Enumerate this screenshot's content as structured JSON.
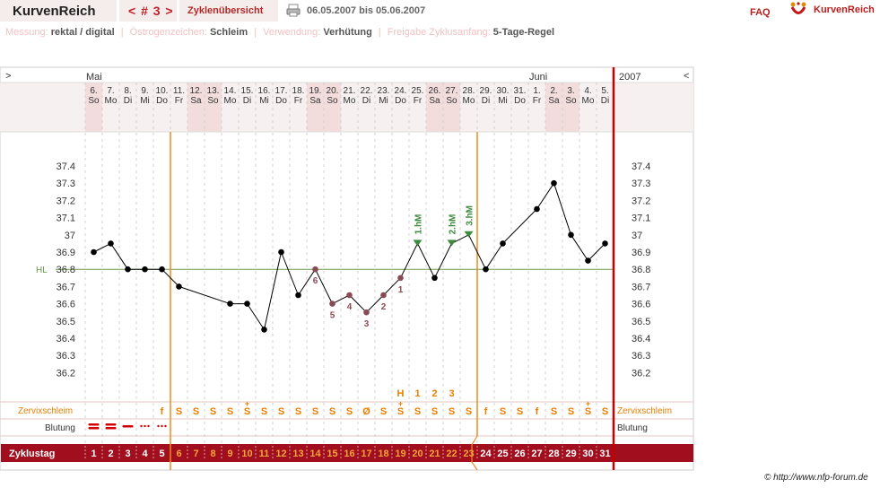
{
  "app": {
    "name": "KurvenReich"
  },
  "nav": {
    "cycle": "< # 3 >",
    "tab": "Zyklenübersicht",
    "date_range": "06.05.2007 bis 05.06.2007",
    "faq": "FAQ",
    "logo_text": "KurvenReich"
  },
  "settings": {
    "messung_label": "Messung:",
    "messung_value": "rektal / digital",
    "oestrogen_label": "Östrogenzeichen:",
    "oestrogen_value": "Schleim",
    "verwendung_label": "Verwendung:",
    "verwendung_value": "Verhütung",
    "freigabe_label": "Freigabe Zyklusanfang:",
    "freigabe_value": "5-Tage-Regel"
  },
  "chart": {
    "nav_left": ">",
    "nav_right": "<",
    "month_may": "Mai",
    "month_june": "Juni",
    "year": "2007",
    "hl_label": "HL",
    "row_mucus_label": "Zervixschleim",
    "row_bleeding_label": "Blutung",
    "row_cycle_label": "Zyklustag"
  },
  "chart_data": {
    "type": "line",
    "ylim": [
      36.2,
      37.4
    ],
    "yticks": [
      "37.4",
      "37.3",
      "37.2",
      "37.1",
      "37",
      "36.9",
      "36.8",
      "36.7",
      "36.6",
      "36.5",
      "36.4",
      "36.3",
      "36.2"
    ],
    "dates": [
      "6.",
      "7.",
      "8.",
      "9.",
      "10.",
      "11.",
      "12.",
      "13.",
      "14.",
      "15.",
      "16.",
      "17.",
      "18.",
      "19.",
      "20.",
      "21.",
      "22.",
      "23.",
      "24.",
      "25.",
      "26.",
      "27.",
      "28.",
      "29.",
      "30.",
      "31.",
      "1.",
      "2.",
      "3.",
      "4.",
      "5."
    ],
    "weekdays": [
      "So",
      "Mo",
      "Di",
      "Mi",
      "Do",
      "Fr",
      "Sa",
      "So",
      "Mo",
      "Di",
      "Mi",
      "Do",
      "Fr",
      "Sa",
      "So",
      "Mo",
      "Di",
      "Mi",
      "Do",
      "Fr",
      "Sa",
      "So",
      "Mo",
      "Di",
      "Mi",
      "Do",
      "Fr",
      "Sa",
      "So",
      "Mo",
      "Di"
    ],
    "cycle_days": [
      "1",
      "2",
      "3",
      "4",
      "5",
      "6",
      "7",
      "8",
      "9",
      "10",
      "11",
      "12",
      "13",
      "14",
      "15",
      "16",
      "17",
      "18",
      "19",
      "20",
      "21",
      "22",
      "23",
      "24",
      "25",
      "26",
      "27",
      "28",
      "29",
      "30",
      "31"
    ],
    "temps": [
      36.9,
      36.95,
      36.8,
      36.8,
      36.8,
      36.7,
      null,
      null,
      36.6,
      36.6,
      36.45,
      36.9,
      36.65,
      36.8,
      36.6,
      36.65,
      36.55,
      36.65,
      36.75,
      36.95,
      36.75,
      36.95,
      37.0,
      36.8,
      36.95,
      null,
      37.15,
      37.3,
      37.0,
      36.85,
      36.95
    ],
    "low_markers": {
      "13": "6",
      "14": "5",
      "15": "4",
      "16": "3",
      "17": "2",
      "18": "1"
    },
    "high_markers": {
      "19": "1.hM",
      "21": "2.hM",
      "22": "3.hM"
    },
    "hl_value": 36.8,
    "mucus": [
      "",
      "",
      "",
      "",
      "f",
      "S",
      "S",
      "S",
      "S",
      "S+",
      "S",
      "S",
      "S",
      "S",
      "S",
      "S",
      "Ø",
      "S",
      "S+",
      "S",
      "S",
      "S",
      "S",
      "f",
      "S",
      "S",
      "f",
      "S",
      "S",
      "S+",
      "S"
    ],
    "peak_markers": {
      "18": "H",
      "19": "1",
      "20": "2",
      "21": "3"
    },
    "bleeding": [
      "heavy",
      "heavy",
      "medium",
      "light",
      "light"
    ],
    "cycle_start_line_day": 6,
    "post_line_day": 23,
    "colors": {
      "temperature": "#000000",
      "low_markers": "#8a4a55",
      "high_markers": "#3d8a3d",
      "hl_line": "#6a9a4a",
      "mucus": "#e77e00",
      "phase_line": "#f08a1e",
      "cycle_bar": "#a10e1e",
      "end_line": "#c40000"
    }
  }
}
